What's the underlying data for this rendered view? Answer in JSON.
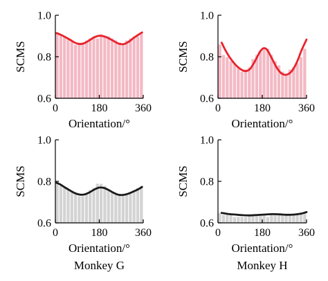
{
  "chart_data": [
    {
      "type": "bar",
      "ylabel": "SCMS",
      "xlabel": "Orientation/°",
      "footer": "",
      "ylim": [
        0.6,
        1.0
      ],
      "xlim": [
        0,
        360
      ],
      "yticks": [
        "0.6",
        "0.8",
        "1.0"
      ],
      "xticks": [
        "0",
        "180",
        "360"
      ],
      "bar_color": "#f3b9c4",
      "bar_edge_color": "#ffffff",
      "curve_color": "#e8232c",
      "x": [
        7.5,
        22.5,
        37.5,
        52.5,
        67.5,
        82.5,
        97.5,
        112.5,
        127.5,
        142.5,
        157.5,
        172.5,
        187.5,
        202.5,
        217.5,
        232.5,
        247.5,
        262.5,
        277.5,
        292.5,
        307.5,
        322.5,
        337.5,
        352.5
      ],
      "values": [
        0.92,
        0.91,
        0.9,
        0.89,
        0.88,
        0.86,
        0.87,
        0.87,
        0.88,
        0.89,
        0.9,
        0.89,
        0.91,
        0.9,
        0.9,
        0.89,
        0.88,
        0.87,
        0.86,
        0.88,
        0.89,
        0.9,
        0.9,
        0.92
      ],
      "curve_x": [
        5,
        20,
        40,
        60,
        80,
        100,
        120,
        140,
        160,
        180,
        200,
        220,
        240,
        260,
        280,
        300,
        320,
        340,
        355
      ],
      "curve_y": [
        0.914,
        0.907,
        0.895,
        0.882,
        0.868,
        0.861,
        0.866,
        0.88,
        0.894,
        0.901,
        0.898,
        0.888,
        0.875,
        0.863,
        0.861,
        0.872,
        0.89,
        0.906,
        0.917
      ]
    },
    {
      "type": "bar",
      "ylabel": "SCMS",
      "xlabel": "Orientation/°",
      "footer": "",
      "ylim": [
        0.6,
        1.0
      ],
      "xlim": [
        0,
        360
      ],
      "yticks": [
        "0.6",
        "0.8",
        "1.0"
      ],
      "xticks": [
        "0",
        "180",
        "360"
      ],
      "bar_color": "#f3b9c4",
      "bar_edge_color": "#ffffff",
      "curve_color": "#e8232c",
      "x": [
        7.5,
        22.5,
        37.5,
        52.5,
        67.5,
        82.5,
        97.5,
        112.5,
        127.5,
        142.5,
        157.5,
        172.5,
        187.5,
        202.5,
        217.5,
        232.5,
        247.5,
        262.5,
        277.5,
        292.5,
        307.5,
        322.5,
        337.5,
        352.5
      ],
      "values": [
        0.86,
        0.81,
        0.8,
        0.78,
        0.77,
        0.75,
        0.73,
        0.74,
        0.75,
        0.79,
        0.81,
        0.83,
        0.84,
        0.84,
        0.81,
        0.78,
        0.76,
        0.73,
        0.72,
        0.74,
        0.75,
        0.77,
        0.8,
        0.84
      ],
      "curve_x": [
        15,
        30,
        50,
        70,
        90,
        110,
        130,
        150,
        170,
        185,
        200,
        220,
        240,
        260,
        280,
        300,
        320,
        340,
        360
      ],
      "curve_y": [
        0.868,
        0.832,
        0.793,
        0.763,
        0.742,
        0.731,
        0.741,
        0.778,
        0.823,
        0.841,
        0.833,
        0.79,
        0.745,
        0.718,
        0.714,
        0.731,
        0.772,
        0.832,
        0.883
      ]
    },
    {
      "type": "bar",
      "ylabel": "SCMS",
      "xlabel": "Orientation/°",
      "footer": "Monkey G",
      "ylim": [
        0.6,
        1.0
      ],
      "xlim": [
        0,
        360
      ],
      "yticks": [
        "0.6",
        "0.8",
        "1.0"
      ],
      "xticks": [
        "0",
        "180",
        "360"
      ],
      "bar_color": "#d3d3d3",
      "bar_edge_color": "#ffffff",
      "curve_color": "#1a1a1a",
      "x": [
        7.5,
        22.5,
        37.5,
        52.5,
        67.5,
        82.5,
        97.5,
        112.5,
        127.5,
        142.5,
        157.5,
        172.5,
        187.5,
        202.5,
        217.5,
        232.5,
        247.5,
        262.5,
        277.5,
        292.5,
        307.5,
        322.5,
        337.5,
        352.5
      ],
      "values": [
        0.8,
        0.78,
        0.77,
        0.76,
        0.75,
        0.74,
        0.73,
        0.73,
        0.74,
        0.76,
        0.77,
        0.79,
        0.79,
        0.78,
        0.76,
        0.75,
        0.74,
        0.74,
        0.74,
        0.74,
        0.75,
        0.76,
        0.77,
        0.78
      ],
      "curve_x": [
        5,
        20,
        40,
        60,
        80,
        100,
        120,
        140,
        160,
        180,
        200,
        220,
        240,
        260,
        280,
        300,
        320,
        340,
        355
      ],
      "curve_y": [
        0.793,
        0.785,
        0.77,
        0.756,
        0.743,
        0.736,
        0.737,
        0.747,
        0.761,
        0.77,
        0.768,
        0.757,
        0.744,
        0.735,
        0.735,
        0.741,
        0.751,
        0.762,
        0.773
      ]
    },
    {
      "type": "bar",
      "ylabel": "SCMS",
      "xlabel": "Orientation/°",
      "footer": "Monkey H",
      "ylim": [
        0.6,
        1.0
      ],
      "xlim": [
        0,
        360
      ],
      "yticks": [
        "0.6",
        "0.8",
        "1.0"
      ],
      "xticks": [
        "0",
        "180",
        "360"
      ],
      "bar_color": "#d3d3d3",
      "bar_edge_color": "#ffffff",
      "curve_color": "#1a1a1a",
      "x": [
        7.5,
        22.5,
        37.5,
        52.5,
        67.5,
        82.5,
        97.5,
        112.5,
        127.5,
        142.5,
        157.5,
        172.5,
        187.5,
        202.5,
        217.5,
        232.5,
        247.5,
        262.5,
        277.5,
        292.5,
        307.5,
        322.5,
        337.5,
        352.5
      ],
      "values": [
        0.65,
        0.64,
        0.64,
        0.64,
        0.63,
        0.63,
        0.63,
        0.63,
        0.64,
        0.64,
        0.64,
        0.64,
        0.64,
        0.63,
        0.64,
        0.64,
        0.64,
        0.64,
        0.64,
        0.64,
        0.64,
        0.64,
        0.65,
        0.65
      ],
      "curve_x": [
        15,
        40,
        70,
        100,
        130,
        160,
        190,
        220,
        250,
        280,
        310,
        340,
        360
      ],
      "curve_y": [
        0.648,
        0.643,
        0.64,
        0.637,
        0.636,
        0.638,
        0.64,
        0.642,
        0.641,
        0.639,
        0.64,
        0.645,
        0.652
      ]
    }
  ]
}
